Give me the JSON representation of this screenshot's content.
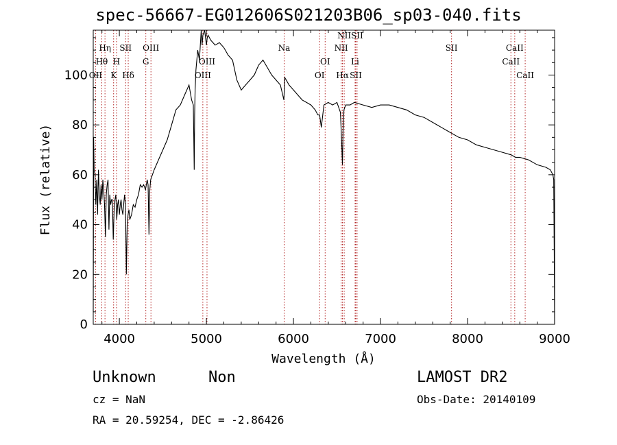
{
  "header": {
    "title": "spec-56667-EG012606S021203B06_sp03-040.fits"
  },
  "info": {
    "class": "Unknown",
    "subclass": "Non",
    "survey": "LAMOST DR2",
    "cz": "cz = NaN",
    "obs_date": "Obs-Date: 20140109",
    "coords": "RA =  20.59254, DEC =  -2.86426"
  },
  "colors": {
    "line_marker": "#b22222",
    "spectrum": "#000000",
    "axis": "#000000"
  },
  "chart_data": {
    "type": "line",
    "title": "spec-56667-EG012606S021203B06_sp03-040.fits",
    "xlabel": "Wavelength (Å)",
    "ylabel": "Flux (relative)",
    "xlim": [
      3700,
      9000
    ],
    "ylim": [
      0,
      118
    ],
    "x_ticks": [
      4000,
      5000,
      6000,
      7000,
      8000,
      9000
    ],
    "y_ticks": [
      0,
      20,
      40,
      60,
      80,
      100
    ],
    "grid": false,
    "series": [
      {
        "x": [
          3700,
          3705,
          3710,
          3720,
          3730,
          3740,
          3750,
          3760,
          3770,
          3780,
          3790,
          3800,
          3810,
          3820,
          3830,
          3840,
          3850,
          3860,
          3870,
          3880,
          3890,
          3900,
          3910,
          3920,
          3930,
          3940,
          3950,
          3960,
          3970,
          3980,
          3990,
          4000,
          4010,
          4020,
          4030,
          4040,
          4050,
          4060,
          4070,
          4080,
          4090,
          4100,
          4110,
          4120,
          4140,
          4160,
          4180,
          4200,
          4220,
          4240,
          4260,
          4280,
          4300,
          4320,
          4330,
          4340,
          4350,
          4360,
          4380,
          4400,
          4450,
          4500,
          4550,
          4600,
          4650,
          4700,
          4750,
          4800,
          4830,
          4850,
          4860,
          4865,
          4870,
          4880,
          4900,
          4920,
          4940,
          4950,
          4960,
          4980,
          5000,
          5010,
          5020,
          5050,
          5100,
          5150,
          5200,
          5250,
          5300,
          5350,
          5400,
          5450,
          5500,
          5550,
          5600,
          5650,
          5700,
          5750,
          5800,
          5850,
          5890,
          5900,
          5950,
          6000,
          6050,
          6100,
          6150,
          6200,
          6250,
          6280,
          6300,
          6320,
          6350,
          6400,
          6450,
          6500,
          6540,
          6555,
          6563,
          6570,
          6580,
          6600,
          6650,
          6700,
          6800,
          6900,
          7000,
          7100,
          7200,
          7300,
          7400,
          7500,
          7600,
          7700,
          7800,
          7900,
          8000,
          8100,
          8200,
          8300,
          8400,
          8500,
          8550,
          8600,
          8700,
          8800,
          8900,
          8950,
          8980,
          8990,
          8995,
          9000
        ],
        "y": [
          5,
          75,
          62,
          60,
          48,
          58,
          44,
          62,
          52,
          48,
          56,
          50,
          58,
          54,
          48,
          35,
          52,
          56,
          58,
          38,
          52,
          48,
          50,
          50,
          34,
          46,
          50,
          52,
          42,
          48,
          50,
          44,
          48,
          50,
          46,
          44,
          48,
          52,
          48,
          20,
          40,
          44,
          46,
          42,
          44,
          48,
          47,
          50,
          52,
          56,
          55,
          56,
          54,
          58,
          56,
          36,
          54,
          58,
          60,
          62,
          66,
          70,
          74,
          80,
          86,
          88,
          92,
          96,
          90,
          88,
          62,
          84,
          94,
          102,
          110,
          106,
          118,
          112,
          116,
          118,
          112,
          115,
          116,
          114,
          112,
          113,
          111,
          108,
          106,
          98,
          94,
          96,
          98,
          100,
          104,
          106,
          103,
          100,
          98,
          96,
          90,
          99,
          96,
          94,
          92,
          90,
          89,
          88,
          86,
          84,
          84,
          79,
          88,
          89,
          88,
          89,
          85,
          72,
          64,
          78,
          86,
          88,
          88,
          89,
          88,
          87,
          88,
          88,
          87,
          86,
          84,
          83,
          81,
          79,
          77,
          75,
          74,
          72,
          71,
          70,
          69,
          68,
          67,
          67,
          66,
          64,
          63,
          62,
          60,
          58,
          30,
          0
        ],
        "note": "values approximate, read off the plotted spectrum"
      }
    ],
    "line_markers": [
      {
        "x": 3727,
        "label": "OII",
        "row": 3
      },
      {
        "x": 3798,
        "label": "Hθ",
        "row": 2
      },
      {
        "x": 3835,
        "label": "Hη",
        "row": 1
      },
      {
        "x": 3934,
        "label": "K",
        "row": 3
      },
      {
        "x": 3968,
        "label": "H",
        "row": 2
      },
      {
        "x": 4072,
        "label": "SII",
        "row": 1
      },
      {
        "x": 4102,
        "label": "Hδ",
        "row": 3
      },
      {
        "x": 4304,
        "label": "G",
        "row": 2
      },
      {
        "x": 4363,
        "label": "OIII",
        "row": 1
      },
      {
        "x": 4959,
        "label": "OIII",
        "row": 3
      },
      {
        "x": 5007,
        "label": "OIII",
        "row": 2
      },
      {
        "x": 5893,
        "label": "Na",
        "row": 1
      },
      {
        "x": 6300,
        "label": "OI",
        "row": 3
      },
      {
        "x": 6364,
        "label": "OI",
        "row": 2
      },
      {
        "x": 6548,
        "label": "NII",
        "row": 1
      },
      {
        "x": 6563,
        "label": "Hα",
        "row": 3
      },
      {
        "x": 6583,
        "label": "NII",
        "row": 0
      },
      {
        "x": 6708,
        "label": "Li",
        "row": 2
      },
      {
        "x": 6716,
        "label": "SII",
        "row": 3
      },
      {
        "x": 6731,
        "label": "SII",
        "row": 0
      },
      {
        "x": 7816,
        "label": "SII",
        "row": 1
      },
      {
        "x": 8498,
        "label": "CaII",
        "row": 2
      },
      {
        "x": 8542,
        "label": "CaII",
        "row": 1
      },
      {
        "x": 8662,
        "label": "CaII",
        "row": 3
      }
    ]
  }
}
